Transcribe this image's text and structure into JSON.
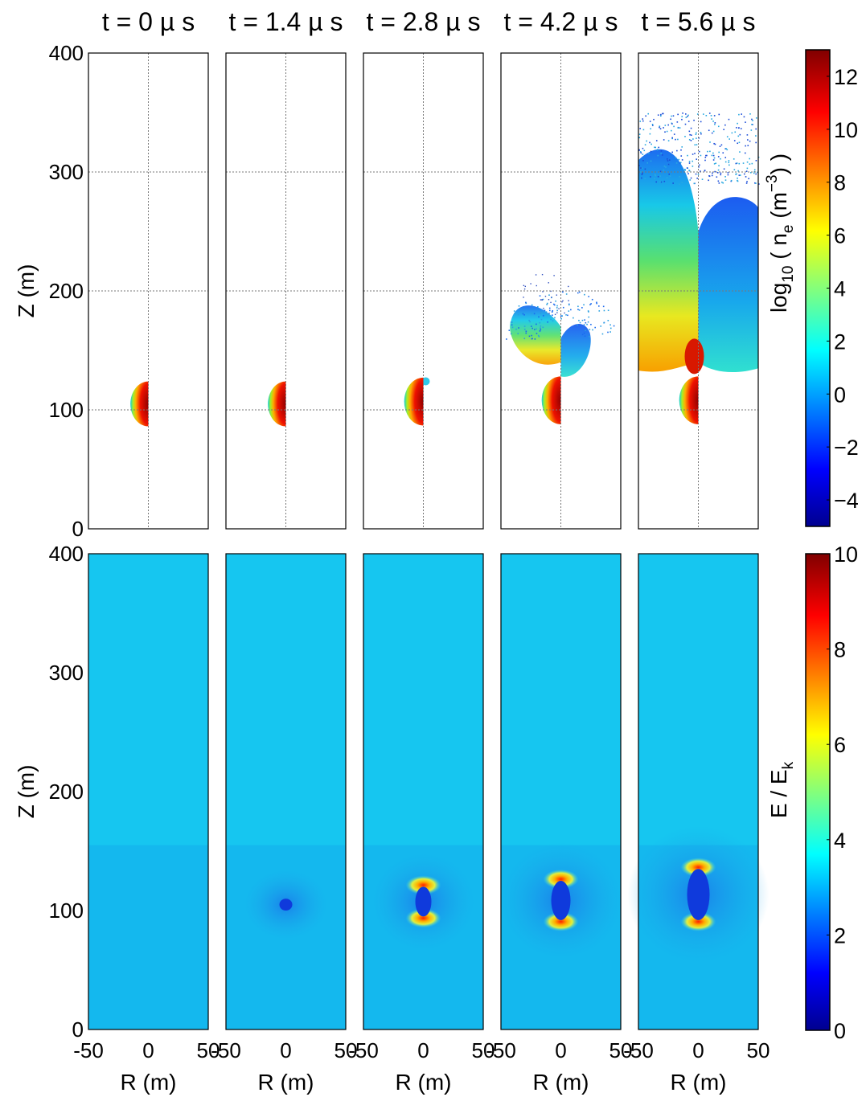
{
  "chart_data": {
    "type": "heatmap",
    "times": [
      "t = 0 µ s",
      "t = 1.4 µ s",
      "t = 2.8 µ s",
      "t = 4.2 µ s",
      "t = 5.6 µ s"
    ],
    "xlabel": "R (m)",
    "ylabel": "Z (m)",
    "xticks": [
      "-50",
      "0",
      "50"
    ],
    "yticks": [
      "400",
      "300",
      "200",
      "100",
      "0"
    ],
    "xlim": [
      -50,
      50
    ],
    "ylim": [
      0,
      400
    ],
    "grid": true,
    "top_row": {
      "quantity_label": "log10 ( ne (m-3) )",
      "label_parts": {
        "log": "log",
        "sub": "10",
        "open": " ( n",
        "e": "e",
        "unit": " (m",
        "exp": "−3",
        "close": ") )"
      },
      "colorbar_ticks": [
        "12",
        "10",
        "8",
        "6",
        "4",
        "2",
        "0",
        "−2",
        "−4"
      ],
      "colorbar_range": [
        -5,
        13
      ],
      "panels": [
        {
          "blob_center_z": 105,
          "blob_radius": 15,
          "extent_top_z": 0
        },
        {
          "blob_center_z": 105,
          "blob_radius": 15,
          "extent_top_z": 0
        },
        {
          "blob_center_z": 107,
          "blob_radius": 16,
          "extent_top_z": 125
        },
        {
          "blob_center_z": 108,
          "blob_radius": 16,
          "extent_top_z": 215
        },
        {
          "blob_center_z": 108,
          "blob_radius": 16,
          "extent_top_z": 350
        }
      ]
    },
    "bottom_row": {
      "quantity_label": "E / Ek",
      "label_parts": {
        "main": "E / E",
        "sub": "k"
      },
      "colorbar_ticks": [
        "10",
        "8",
        "6",
        "4",
        "2",
        "0"
      ],
      "colorbar_range": [
        0,
        10
      ],
      "background_value": 3.2,
      "panels": [
        {
          "streamer_z_low": 0,
          "streamer_z_high": 0
        },
        {
          "streamer_z_low": 100,
          "streamer_z_high": 110
        },
        {
          "streamer_z_low": 95,
          "streamer_z_high": 120
        },
        {
          "streamer_z_low": 92,
          "streamer_z_high": 125
        },
        {
          "streamer_z_low": 92,
          "streamer_z_high": 135
        }
      ]
    }
  }
}
